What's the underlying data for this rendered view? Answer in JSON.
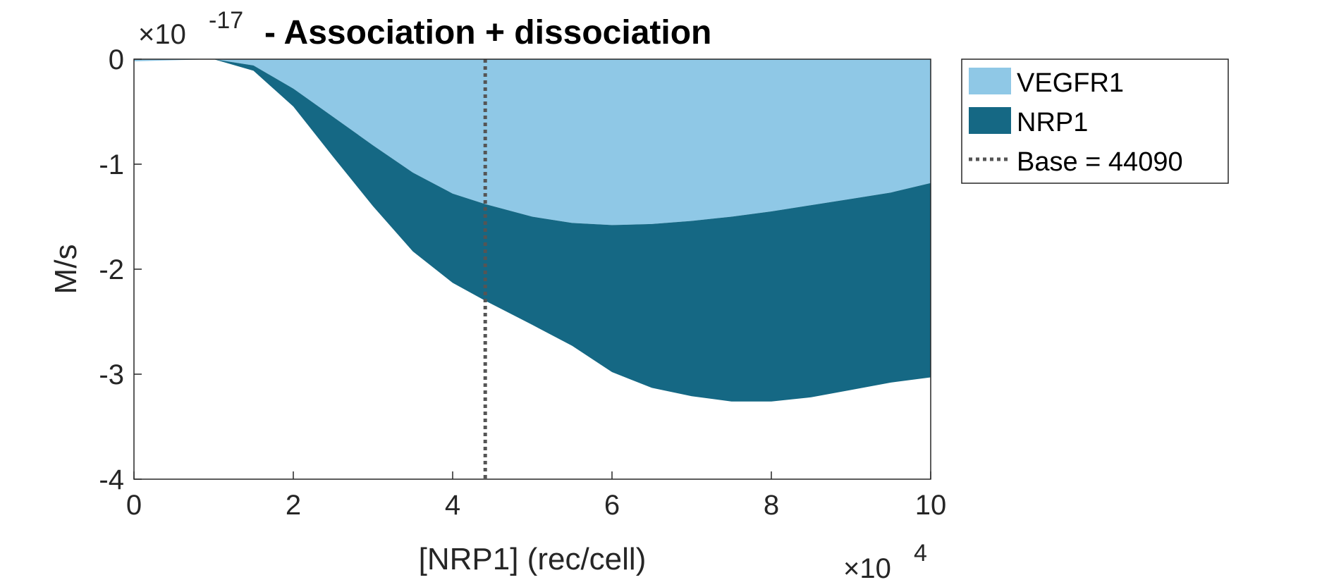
{
  "chart_data": {
    "type": "area",
    "title": "- Association + dissociation",
    "xlabel": "[NRP1] (rec/cell)",
    "ylabel": "M/s",
    "x_multiplier_label": "×10",
    "x_multiplier_exp": "4",
    "y_multiplier_label": "×10",
    "y_multiplier_exp": "-17",
    "xlim": [
      0,
      10
    ],
    "ylim": [
      -4,
      0
    ],
    "xticks": [
      "0",
      "2",
      "4",
      "6",
      "8",
      "10"
    ],
    "yticks": [
      "0",
      "-1",
      "-2",
      "-3",
      "-4"
    ],
    "grid": false,
    "legend_position": "outside-right",
    "x": [
      0,
      0.5,
      1,
      1.5,
      2,
      2.5,
      3,
      3.5,
      4,
      4.409,
      5,
      5.5,
      6,
      6.5,
      7,
      7.5,
      8,
      8.5,
      9,
      9.5,
      10
    ],
    "series": [
      {
        "name": "VEGFR1",
        "color": "#8fc8e6",
        "values": [
          -0.02,
          -0.01,
          0,
          -0.06,
          -0.28,
          -0.55,
          -0.82,
          -1.08,
          -1.28,
          -1.38,
          -1.5,
          -1.56,
          -1.58,
          -1.57,
          -1.54,
          -1.5,
          -1.45,
          -1.39,
          -1.33,
          -1.27,
          -1.18
        ]
      },
      {
        "name": "NRP1",
        "color": "#156884",
        "values": [
          0,
          0,
          0,
          -0.05,
          -0.17,
          -0.38,
          -0.58,
          -0.75,
          -0.85,
          -0.92,
          -1.03,
          -1.17,
          -1.4,
          -1.56,
          -1.67,
          -1.76,
          -1.81,
          -1.83,
          -1.82,
          -1.81,
          -1.85
        ]
      }
    ],
    "reference_line": {
      "x": 4.409,
      "label": "Base = 44090",
      "color": "#555555",
      "style": "dotted"
    }
  }
}
